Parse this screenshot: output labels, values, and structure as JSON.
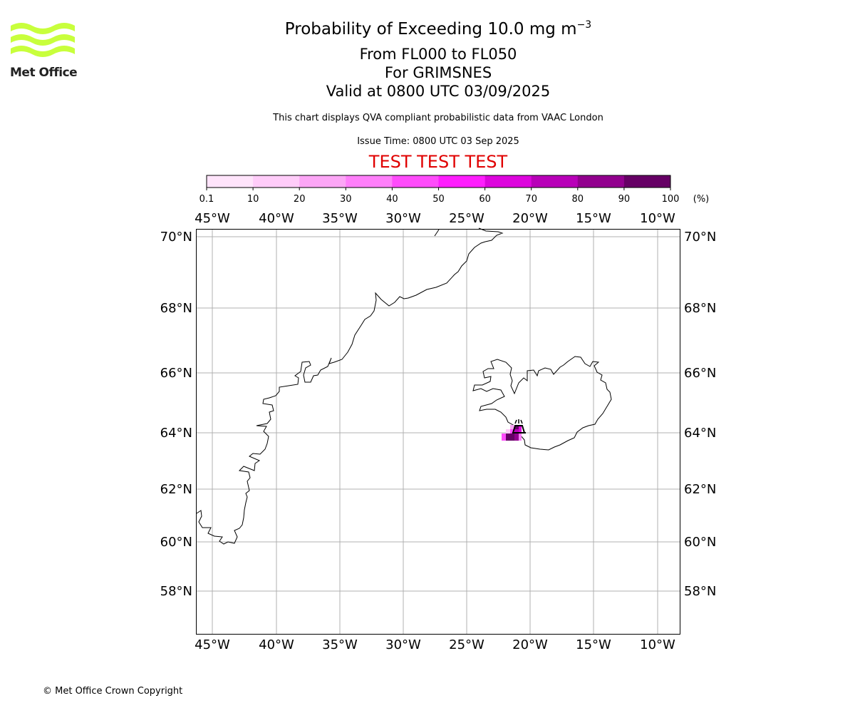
{
  "logo": {
    "text": "Met Office",
    "color": "#c8ff3c"
  },
  "header": {
    "title": "Probability of Exceeding 10.0 mg m",
    "title_exponent": "−3",
    "flight_levels": "From FL000 to FL050",
    "volcano": "For GRIMSNES",
    "valid_time": "Valid at 0800 UTC 03/09/2025",
    "note": "This chart displays QVA compliant probabilistic data from VAAC London",
    "issue_time": "Issue Time: 0800 UTC 03 Sep 2025",
    "test_banner": "TEST TEST TEST"
  },
  "colorbar": {
    "ticks": [
      "0.1",
      "10",
      "20",
      "30",
      "40",
      "50",
      "60",
      "70",
      "80",
      "90",
      "100"
    ],
    "unit": "(%)",
    "colors": [
      "#ffe4fb",
      "#ffccf9",
      "#fca6f6",
      "#ff7ffa",
      "#ff4cfb",
      "#fe1efd",
      "#dd05dd",
      "#b800b8",
      "#92008e",
      "#660065"
    ]
  },
  "map": {
    "lon_labels": [
      "45°W",
      "40°W",
      "35°W",
      "30°W",
      "25°W",
      "20°W",
      "15°W",
      "10°W"
    ],
    "lat_labels": [
      "70°N",
      "68°N",
      "66°N",
      "64°N",
      "62°N",
      "60°N",
      "58°N"
    ],
    "grid_color": "#b0b0b0",
    "volcano_marker": "volcano-icon"
  },
  "footer": {
    "copyright": "© Met Office Crown Copyright"
  }
}
